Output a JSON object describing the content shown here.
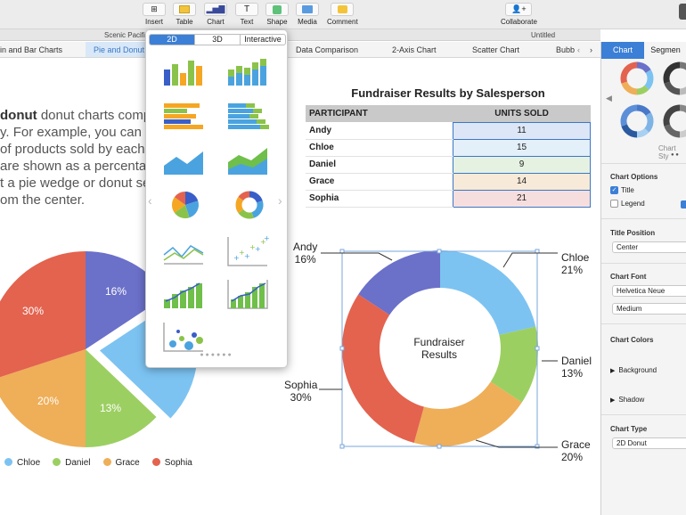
{
  "toolbar": {
    "insert": "Insert",
    "table": "Table",
    "chart": "Chart",
    "text": "Text",
    "shape": "Shape",
    "media": "Media",
    "comment": "Comment",
    "collaborate": "Collaborate"
  },
  "titlebar": {
    "left": "Scenic Pacific",
    "doc": "Untitled"
  },
  "tabs": [
    "in and Bar Charts",
    "Pie and Donut C",
    "Data Comparison",
    "2-Axis Chart",
    "Scatter Chart",
    "Bubb"
  ],
  "body_text": [
    "donut charts compare valu",
    "y. For example, you can co",
    "of products sold by each s",
    "are shown as a percentage o",
    "t a pie wedge or donut seg",
    "om the center."
  ],
  "body_bold": "donut",
  "popover": {
    "tab_2d": "2D",
    "tab_3d": "3D",
    "tab_interactive": "Interactive"
  },
  "table": {
    "title": "Fundraiser Results by Salesperson",
    "col_participant": "PARTICIPANT",
    "col_units": "UNITS SOLD",
    "rows": [
      {
        "name": "Andy",
        "units": "11",
        "color": "#dde6f6"
      },
      {
        "name": "Chloe",
        "units": "15",
        "color": "#e3eff9"
      },
      {
        "name": "Daniel",
        "units": "9",
        "color": "#e6f2e1"
      },
      {
        "name": "Grace",
        "units": "14",
        "color": "#f7ead8"
      },
      {
        "name": "Sophia",
        "units": "21",
        "color": "#f7dede"
      }
    ]
  },
  "pie": {
    "labels": [
      {
        "text": "16%"
      },
      {
        "text": "30%"
      },
      {
        "text": "20%"
      },
      {
        "text": "13%"
      }
    ],
    "legend": [
      "Chloe",
      "Daniel",
      "Grace",
      "Sophia"
    ]
  },
  "donut": {
    "center": "Fundraiser Results",
    "labels": [
      {
        "name": "Andy",
        "pct": "16%"
      },
      {
        "name": "Chloe",
        "pct": "21%"
      },
      {
        "name": "Daniel",
        "pct": "13%"
      },
      {
        "name": "Grace",
        "pct": "20%"
      },
      {
        "name": "Sophia",
        "pct": "30%"
      }
    ]
  },
  "colors": {
    "andy": "#6b70c9",
    "chloe": "#7cc3f2",
    "daniel": "#9ccf62",
    "grace": "#efae58",
    "sophia": "#e3634f",
    "accent": "#3b7fd6"
  },
  "inspector": {
    "tab_chart": "Chart",
    "tab_segment": "Segmen",
    "chart_styles": "Chart Sty",
    "chart_options": "Chart Options",
    "title": "Title",
    "legend": "Legend",
    "title_position": "Title Position",
    "title_position_value": "Center",
    "chart_font": "Chart Font",
    "font_value": "Helvetica Neue",
    "font_weight": "Medium",
    "chart_colors": "Chart Colors",
    "background": "Background",
    "shadow": "Shadow",
    "chart_type": "Chart Type",
    "chart_type_value": "2D Donut"
  },
  "chart_data": {
    "type": "pie",
    "categories": [
      "Andy",
      "Chloe",
      "Daniel",
      "Grace",
      "Sophia"
    ],
    "values": [
      11,
      15,
      9,
      14,
      21
    ],
    "percentages": [
      16,
      21,
      13,
      20,
      30
    ],
    "title": "Fundraiser Results"
  }
}
